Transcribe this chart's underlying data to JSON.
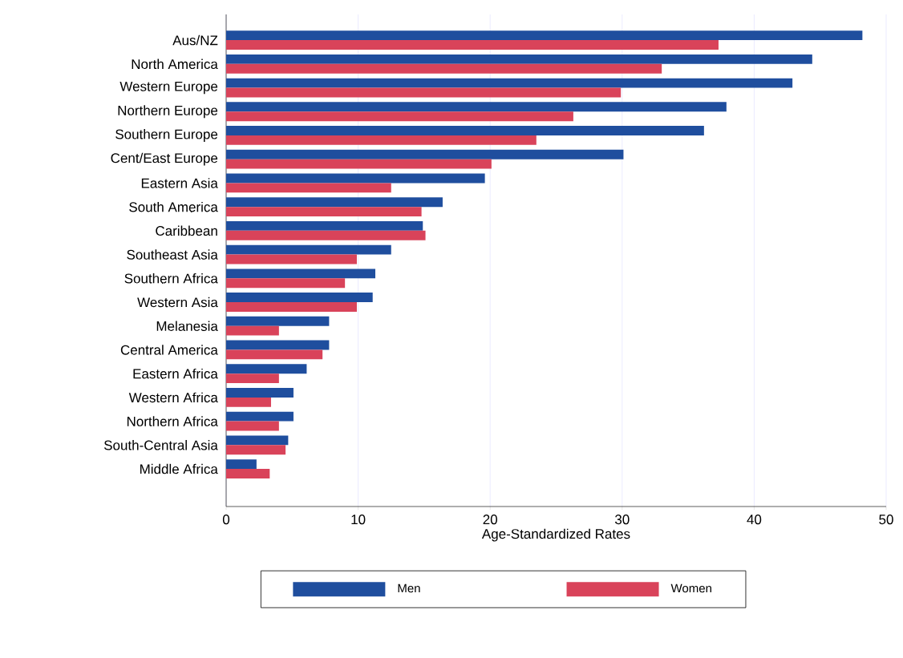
{
  "chart_data": {
    "type": "bar",
    "orientation": "horizontal",
    "xlabel": "Age-Standardized Rates",
    "categories": [
      "Aus/NZ",
      "North America",
      "Western Europe",
      "Northern Europe",
      "Southern Europe",
      "Cent/East Europe",
      "Eastern Asia",
      "South America",
      "Caribbean",
      "Southeast Asia",
      "Southern Africa",
      "Western Asia",
      "Melanesia",
      "Central America",
      "Eastern Africa",
      "Western Africa",
      "Northern Africa",
      "South-Central Asia",
      "Middle Africa"
    ],
    "series": [
      {
        "name": "Men",
        "color": "#1f4e9e",
        "values": [
          48.2,
          44.4,
          42.9,
          37.9,
          36.2,
          30.1,
          19.6,
          16.4,
          14.9,
          12.5,
          11.3,
          11.1,
          7.8,
          7.8,
          6.1,
          5.1,
          5.1,
          4.7,
          2.3
        ]
      },
      {
        "name": "Women",
        "color": "#d9435a",
        "values": [
          37.3,
          33.0,
          29.9,
          26.3,
          23.5,
          20.1,
          12.5,
          14.8,
          15.1,
          9.9,
          9.0,
          9.9,
          4.0,
          7.3,
          4.0,
          3.4,
          4.0,
          4.5,
          3.3
        ]
      }
    ],
    "xlim": [
      0,
      50
    ],
    "xticks": [
      0,
      10,
      20,
      30,
      40,
      50
    ],
    "grid": "x",
    "legend": "bottom"
  }
}
